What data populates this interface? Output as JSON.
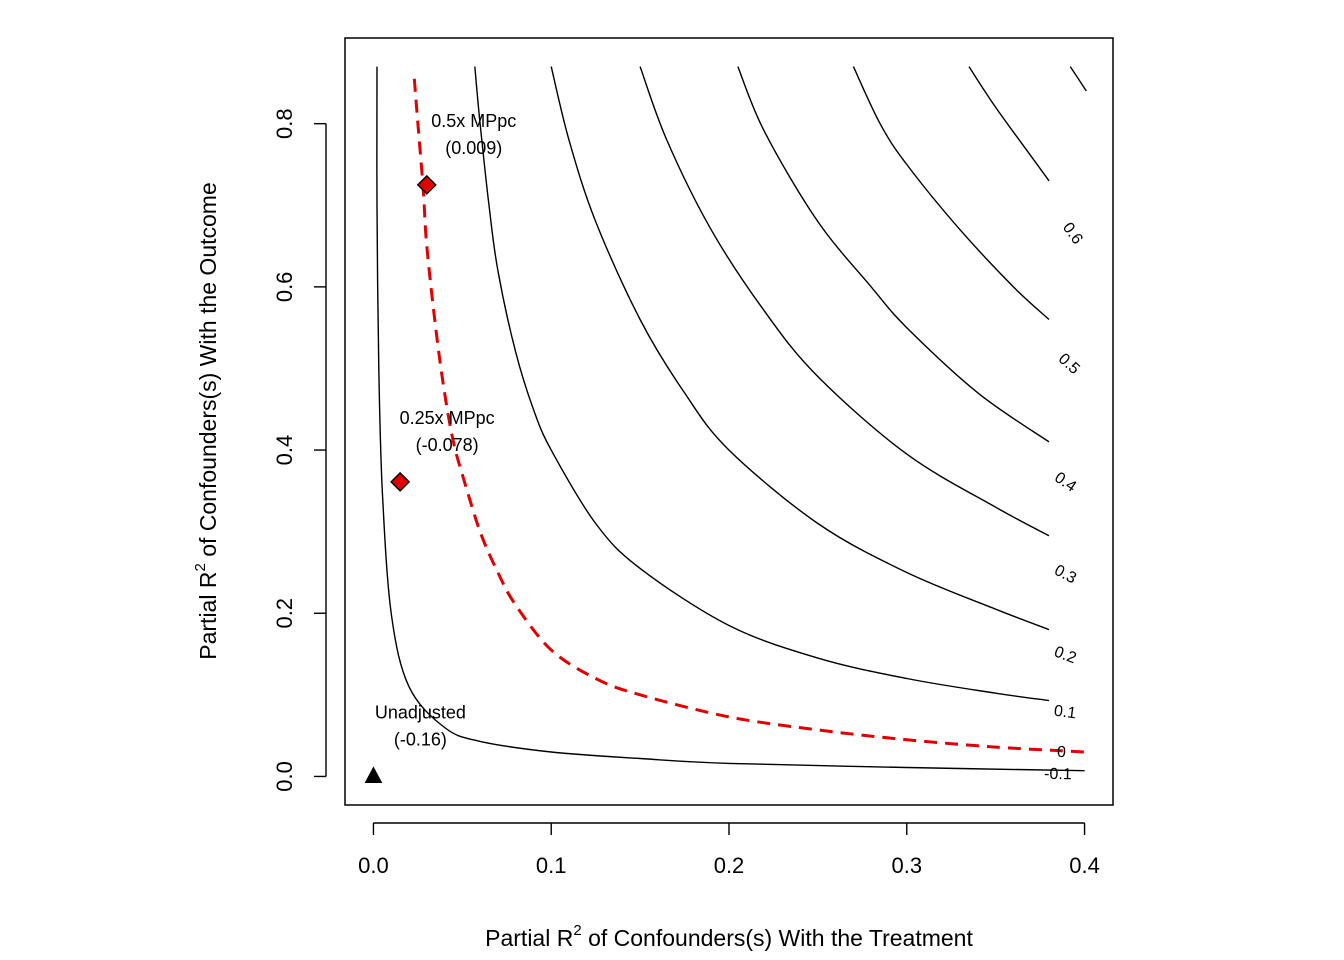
{
  "chart_data": {
    "type": "line",
    "title": "",
    "xlabel_parts": {
      "pre": "Partial R",
      "sup": "2",
      "post": " of Confounders(s) With the Treatment"
    },
    "ylabel_parts": {
      "pre": "Partial R",
      "sup": "2",
      "post": " of Confounders(s) With the Outcome"
    },
    "xlim": [
      -0.016,
      0.416
    ],
    "ylim": [
      -0.035,
      0.905
    ],
    "x_ticks": [
      0.0,
      0.1,
      0.2,
      0.3,
      0.4
    ],
    "x_tick_labels": [
      "0.0",
      "0.1",
      "0.2",
      "0.3",
      "0.4"
    ],
    "y_ticks": [
      0.0,
      0.2,
      0.4,
      0.6,
      0.8
    ],
    "y_tick_labels": [
      "0.0",
      "0.2",
      "0.4",
      "0.6",
      "0.8"
    ],
    "grid": false,
    "contour_color": "#000000",
    "threshold_color": "#e00000",
    "marker_fill": "#e00000",
    "contours": [
      {
        "label": "-0.1",
        "threshold": false,
        "points": [
          [
            0.002,
            0.87
          ],
          [
            0.002,
            0.7
          ],
          [
            0.003,
            0.5
          ],
          [
            0.005,
            0.35
          ],
          [
            0.01,
            0.2
          ],
          [
            0.02,
            0.11
          ],
          [
            0.04,
            0.06
          ],
          [
            0.06,
            0.043
          ],
          [
            0.1,
            0.03
          ],
          [
            0.15,
            0.022
          ],
          [
            0.2,
            0.016
          ],
          [
            0.3,
            0.011
          ],
          [
            0.4,
            0.007
          ]
        ],
        "label_at": [
          0.385,
          0.002
        ]
      },
      {
        "label": "0",
        "threshold": true,
        "points": [
          [
            0.023,
            0.855
          ],
          [
            0.025,
            0.8
          ],
          [
            0.028,
            0.72
          ],
          [
            0.03,
            0.65
          ],
          [
            0.035,
            0.55
          ],
          [
            0.04,
            0.47
          ],
          [
            0.045,
            0.41
          ],
          [
            0.05,
            0.37
          ],
          [
            0.06,
            0.3
          ],
          [
            0.07,
            0.25
          ],
          [
            0.08,
            0.21
          ],
          [
            0.1,
            0.155
          ],
          [
            0.125,
            0.12
          ],
          [
            0.15,
            0.1
          ],
          [
            0.2,
            0.073
          ],
          [
            0.25,
            0.057
          ],
          [
            0.3,
            0.045
          ],
          [
            0.35,
            0.036
          ],
          [
            0.4,
            0.03
          ]
        ],
        "label_at": [
          0.387,
          0.029
        ]
      },
      {
        "label": "0.1",
        "threshold": false,
        "points": [
          [
            0.057,
            0.87
          ],
          [
            0.06,
            0.8
          ],
          [
            0.065,
            0.7
          ],
          [
            0.07,
            0.62
          ],
          [
            0.08,
            0.52
          ],
          [
            0.09,
            0.45
          ],
          [
            0.1,
            0.4
          ],
          [
            0.125,
            0.31
          ],
          [
            0.15,
            0.255
          ],
          [
            0.2,
            0.185
          ],
          [
            0.25,
            0.145
          ],
          [
            0.3,
            0.12
          ],
          [
            0.35,
            0.102
          ],
          [
            0.38,
            0.093
          ]
        ],
        "label_at": [
          0.389,
          0.078
        ]
      },
      {
        "label": "0.2",
        "threshold": false,
        "points": [
          [
            0.1,
            0.87
          ],
          [
            0.11,
            0.78
          ],
          [
            0.125,
            0.68
          ],
          [
            0.15,
            0.56
          ],
          [
            0.175,
            0.47
          ],
          [
            0.2,
            0.4
          ],
          [
            0.25,
            0.31
          ],
          [
            0.3,
            0.25
          ],
          [
            0.35,
            0.205
          ],
          [
            0.38,
            0.18
          ]
        ],
        "label_at": [
          0.389,
          0.148
        ]
      },
      {
        "label": "0.3",
        "threshold": false,
        "points": [
          [
            0.15,
            0.87
          ],
          [
            0.165,
            0.78
          ],
          [
            0.19,
            0.67
          ],
          [
            0.22,
            0.57
          ],
          [
            0.25,
            0.49
          ],
          [
            0.3,
            0.395
          ],
          [
            0.35,
            0.33
          ],
          [
            0.38,
            0.295
          ]
        ],
        "label_at": [
          0.389,
          0.247
        ]
      },
      {
        "label": "0.4",
        "threshold": false,
        "points": [
          [
            0.205,
            0.87
          ],
          [
            0.22,
            0.79
          ],
          [
            0.25,
            0.68
          ],
          [
            0.28,
            0.6
          ],
          [
            0.3,
            0.55
          ],
          [
            0.34,
            0.47
          ],
          [
            0.38,
            0.41
          ]
        ],
        "label_at": [
          0.389,
          0.36
        ]
      },
      {
        "label": "0.5",
        "threshold": false,
        "points": [
          [
            0.27,
            0.87
          ],
          [
            0.285,
            0.8
          ],
          [
            0.3,
            0.75
          ],
          [
            0.33,
            0.67
          ],
          [
            0.36,
            0.6
          ],
          [
            0.38,
            0.56
          ]
        ],
        "label_at": [
          0.391,
          0.505
        ]
      },
      {
        "label": "0.6",
        "threshold": false,
        "points": [
          [
            0.335,
            0.87
          ],
          [
            0.35,
            0.82
          ],
          [
            0.37,
            0.76
          ],
          [
            0.38,
            0.73
          ]
        ],
        "label_at": [
          0.393,
          0.665
        ]
      },
      {
        "label": "",
        "threshold": false,
        "points": [
          [
            0.392,
            0.87
          ],
          [
            0.401,
            0.84
          ]
        ],
        "label_at": null
      }
    ],
    "points": [
      {
        "name": "unadjusted",
        "marker": "triangle",
        "x": 0.0,
        "y": 0.0,
        "label_lines": [
          "Unadjusted",
          "(-0.16)"
        ]
      },
      {
        "name": "0.25x",
        "marker": "diamond",
        "x": 0.015,
        "y": 0.361,
        "label_lines": [
          "0.25x MPpc",
          "(-0.078)"
        ]
      },
      {
        "name": "0.5x",
        "marker": "diamond",
        "x": 0.03,
        "y": 0.725,
        "label_lines": [
          "0.5x MPpc",
          "(0.009)"
        ]
      }
    ]
  }
}
